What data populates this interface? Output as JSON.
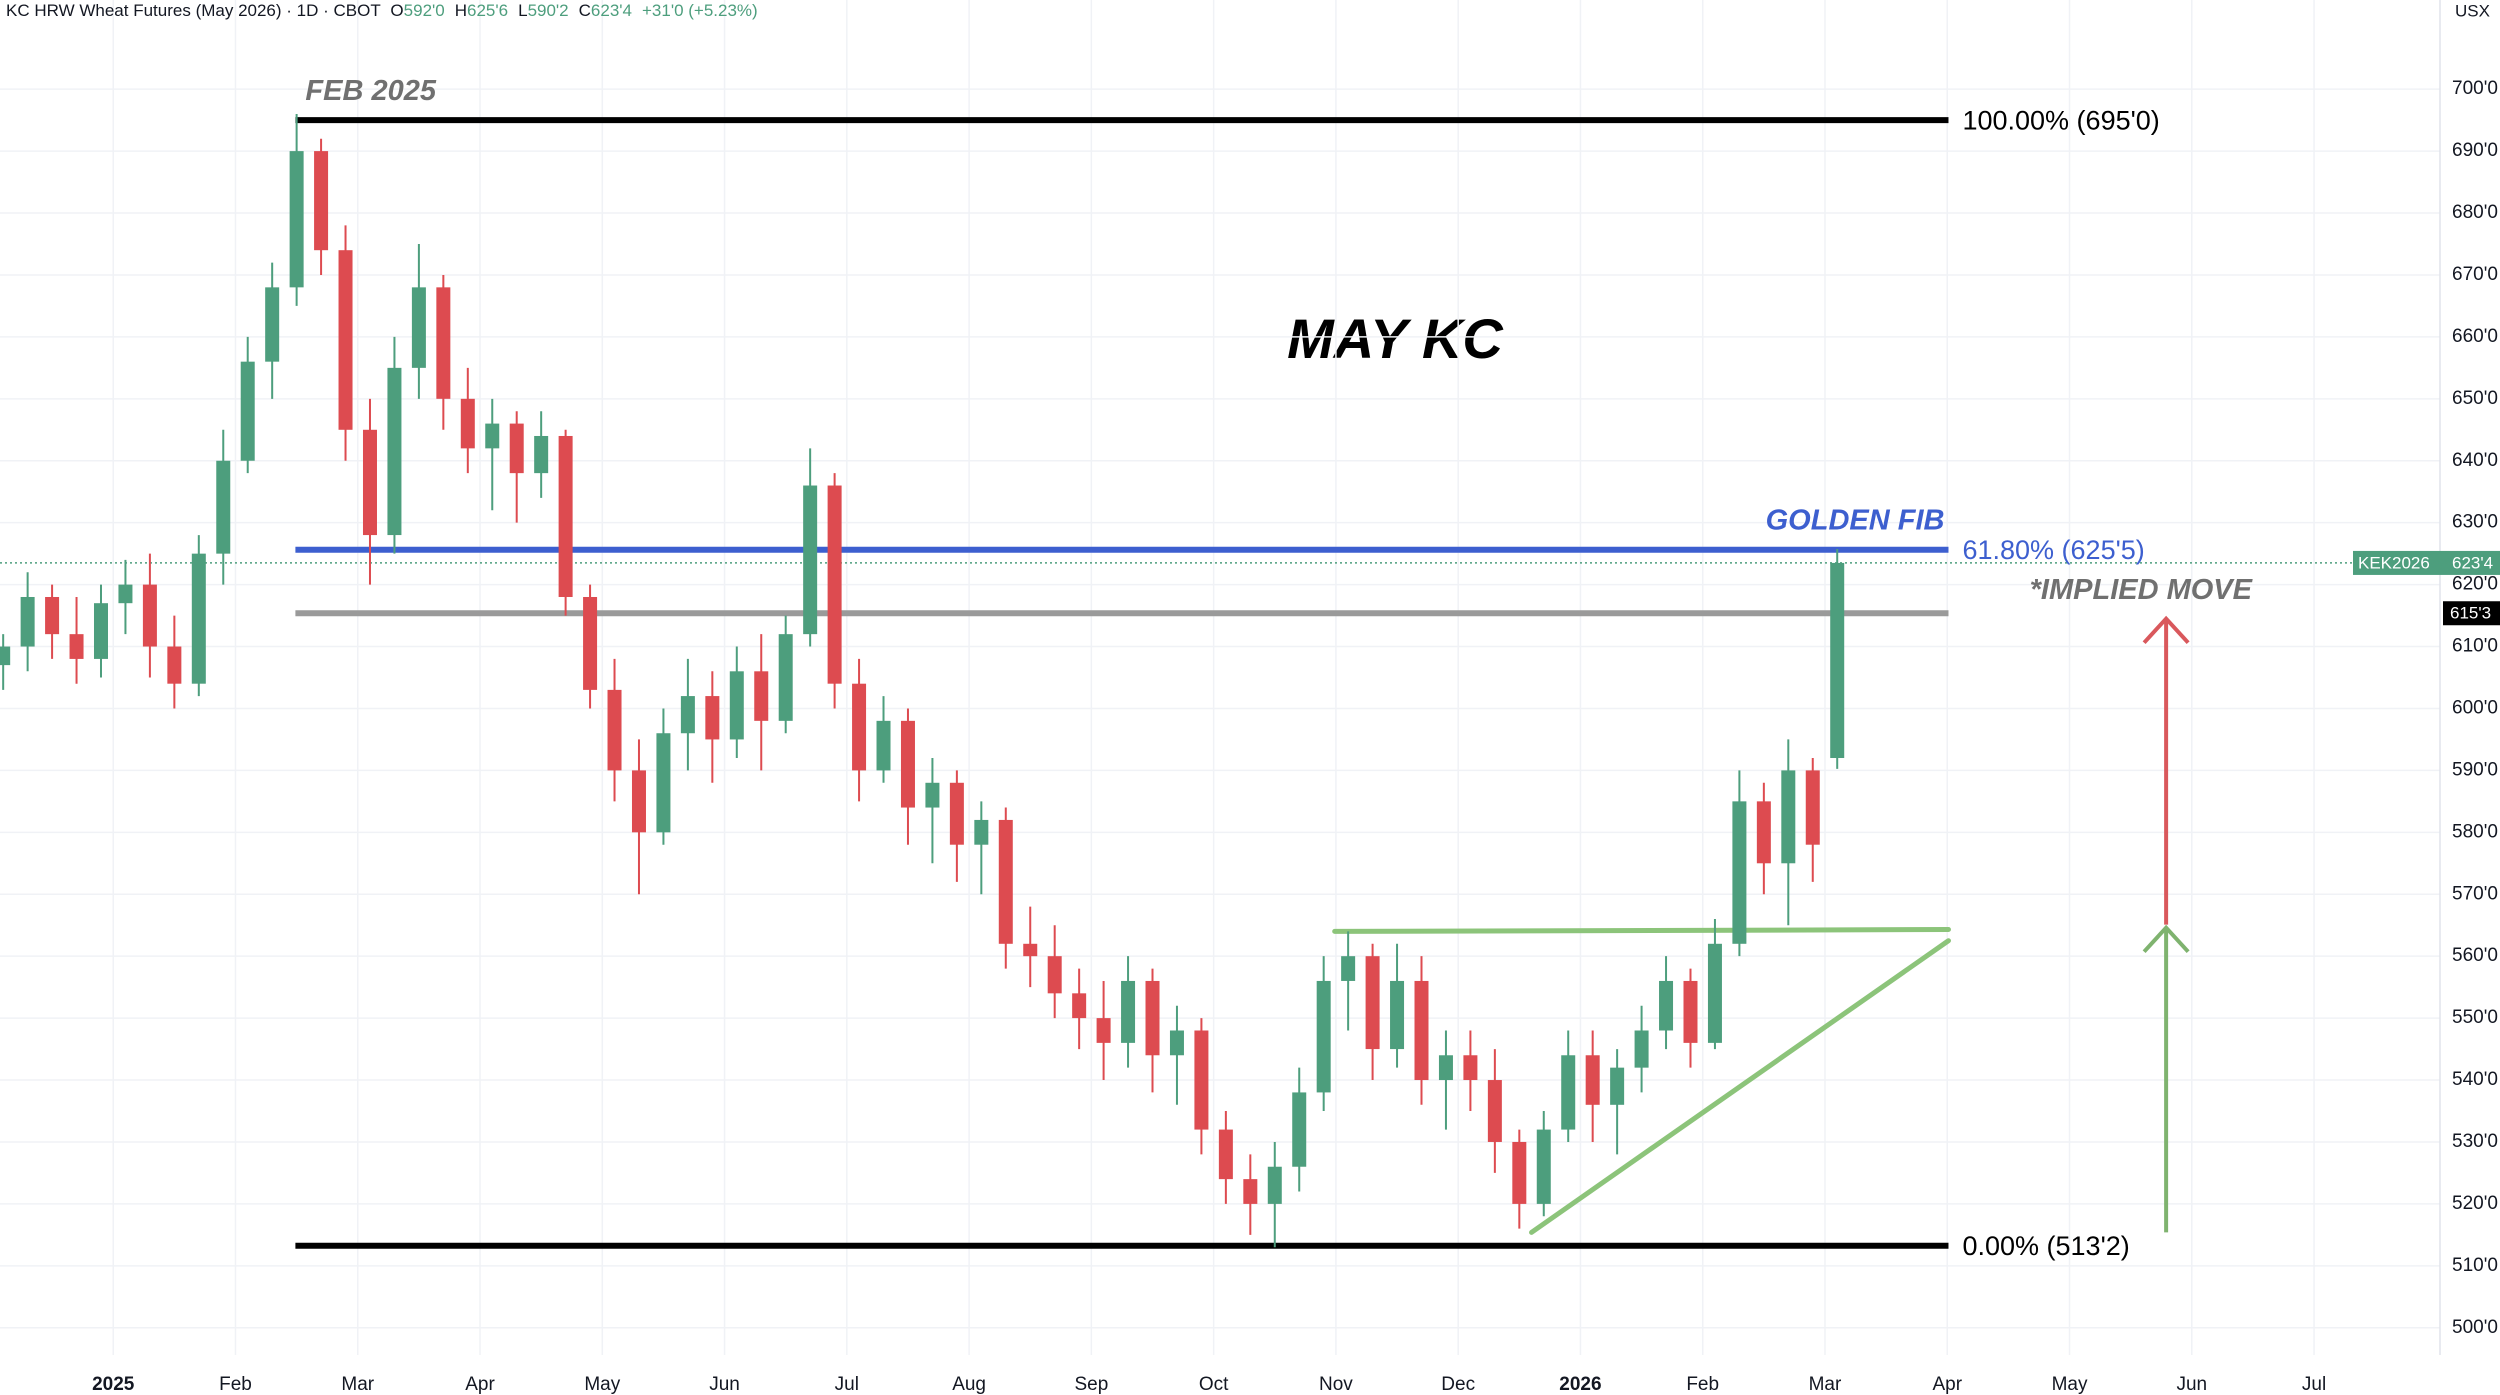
{
  "header": {
    "symbol": "KC HRW Wheat Futures (May 2026) · 1D · CBOT",
    "ohlc": [
      {
        "label": "O",
        "value": "592'0"
      },
      {
        "label": "H",
        "value": "625'6"
      },
      {
        "label": "L",
        "value": "590'2"
      },
      {
        "label": "C",
        "value": "623'4"
      }
    ],
    "change": "+31'0 (+5.23%)",
    "currency": "USX"
  },
  "chart_data": {
    "type": "candlestick",
    "title": "MAY KC",
    "up_color": "#4d9e7d",
    "down_color": "#dd4b50",
    "grid": true,
    "xlim": [
      -0.926,
      19.03
    ],
    "ylim": [
      495.6,
      714.4
    ],
    "xticks": [
      {
        "value": 0,
        "label": "2025"
      },
      {
        "value": 1,
        "label": "Feb"
      },
      {
        "value": 2,
        "label": "Mar"
      },
      {
        "value": 3,
        "label": "Apr"
      },
      {
        "value": 4,
        "label": "May"
      },
      {
        "value": 5,
        "label": "Jun"
      },
      {
        "value": 6,
        "label": "Jul"
      },
      {
        "value": 7,
        "label": "Aug"
      },
      {
        "value": 8,
        "label": "Sep"
      },
      {
        "value": 9,
        "label": "Oct"
      },
      {
        "value": 10,
        "label": "Nov"
      },
      {
        "value": 11,
        "label": "Dec"
      },
      {
        "value": 12,
        "label": "2026"
      },
      {
        "value": 13,
        "label": "Feb"
      },
      {
        "value": 14,
        "label": "Mar"
      },
      {
        "value": 15,
        "label": "Apr"
      },
      {
        "value": 16,
        "label": "May"
      },
      {
        "value": 17,
        "label": "Jun"
      },
      {
        "value": 18,
        "label": "Jul"
      }
    ],
    "yticks": [
      {
        "value": 500,
        "label": "500'0"
      },
      {
        "value": 510,
        "label": "510'0"
      },
      {
        "value": 520,
        "label": "520'0"
      },
      {
        "value": 530,
        "label": "530'0"
      },
      {
        "value": 540,
        "label": "540'0"
      },
      {
        "value": 550,
        "label": "550'0"
      },
      {
        "value": 560,
        "label": "560'0"
      },
      {
        "value": 570,
        "label": "570'0"
      },
      {
        "value": 580,
        "label": "580'0"
      },
      {
        "value": 590,
        "label": "590'0"
      },
      {
        "value": 600,
        "label": "600'0"
      },
      {
        "value": 610,
        "label": "610'0"
      },
      {
        "value": 620,
        "label": "620'0"
      },
      {
        "value": 630,
        "label": "630'0"
      },
      {
        "value": 640,
        "label": "640'0"
      },
      {
        "value": 650,
        "label": "650'0"
      },
      {
        "value": 660,
        "label": "660'0"
      },
      {
        "value": 670,
        "label": "670'0"
      },
      {
        "value": 680,
        "label": "680'0"
      },
      {
        "value": 690,
        "label": "690'0"
      },
      {
        "value": 700,
        "label": "700'0"
      }
    ],
    "candles": [
      {
        "x": -0.9,
        "open": 607,
        "high": 612,
        "low": 603,
        "close": 610
      },
      {
        "x": -0.7,
        "open": 610,
        "high": 622,
        "low": 606,
        "close": 618
      },
      {
        "x": -0.5,
        "open": 618,
        "high": 620,
        "low": 608,
        "close": 612
      },
      {
        "x": -0.3,
        "open": 612,
        "high": 618,
        "low": 604,
        "close": 608
      },
      {
        "x": -0.1,
        "open": 608,
        "high": 620,
        "low": 605,
        "close": 617
      },
      {
        "x": 0.1,
        "open": 617,
        "high": 624,
        "low": 612,
        "close": 620
      },
      {
        "x": 0.3,
        "open": 620,
        "high": 625,
        "low": 605,
        "close": 610
      },
      {
        "x": 0.5,
        "open": 610,
        "high": 615,
        "low": 600,
        "close": 604
      },
      {
        "x": 0.7,
        "open": 604,
        "high": 628,
        "low": 602,
        "close": 625
      },
      {
        "x": 0.9,
        "open": 625,
        "high": 645,
        "low": 620,
        "close": 640
      },
      {
        "x": 1.1,
        "open": 640,
        "high": 660,
        "low": 638,
        "close": 656
      },
      {
        "x": 1.3,
        "open": 656,
        "high": 672,
        "low": 650,
        "close": 668
      },
      {
        "x": 1.5,
        "open": 668,
        "high": 696,
        "low": 665,
        "close": 690
      },
      {
        "x": 1.7,
        "open": 690,
        "high": 692,
        "low": 670,
        "close": 674
      },
      {
        "x": 1.9,
        "open": 674,
        "high": 678,
        "low": 640,
        "close": 645
      },
      {
        "x": 2.1,
        "open": 645,
        "high": 650,
        "low": 620,
        "close": 628
      },
      {
        "x": 2.3,
        "open": 628,
        "high": 660,
        "low": 625,
        "close": 655
      },
      {
        "x": 2.5,
        "open": 655,
        "high": 675,
        "low": 650,
        "close": 668
      },
      {
        "x": 2.7,
        "open": 668,
        "high": 670,
        "low": 645,
        "close": 650
      },
      {
        "x": 2.9,
        "open": 650,
        "high": 655,
        "low": 638,
        "close": 642
      },
      {
        "x": 3.1,
        "open": 642,
        "high": 650,
        "low": 632,
        "close": 646
      },
      {
        "x": 3.3,
        "open": 646,
        "high": 648,
        "low": 630,
        "close": 638
      },
      {
        "x": 3.5,
        "open": 638,
        "high": 648,
        "low": 634,
        "close": 644
      },
      {
        "x": 3.7,
        "open": 644,
        "high": 645,
        "low": 615,
        "close": 618
      },
      {
        "x": 3.9,
        "open": 618,
        "high": 620,
        "low": 600,
        "close": 603
      },
      {
        "x": 4.1,
        "open": 603,
        "high": 608,
        "low": 585,
        "close": 590
      },
      {
        "x": 4.3,
        "open": 590,
        "high": 595,
        "low": 570,
        "close": 580
      },
      {
        "x": 4.5,
        "open": 580,
        "high": 600,
        "low": 578,
        "close": 596
      },
      {
        "x": 4.7,
        "open": 596,
        "high": 608,
        "low": 590,
        "close": 602
      },
      {
        "x": 4.9,
        "open": 602,
        "high": 606,
        "low": 588,
        "close": 595
      },
      {
        "x": 5.1,
        "open": 595,
        "high": 610,
        "low": 592,
        "close": 606
      },
      {
        "x": 5.3,
        "open": 606,
        "high": 612,
        "low": 590,
        "close": 598
      },
      {
        "x": 5.5,
        "open": 598,
        "high": 615,
        "low": 596,
        "close": 612
      },
      {
        "x": 5.7,
        "open": 612,
        "high": 642,
        "low": 610,
        "close": 636
      },
      {
        "x": 5.9,
        "open": 636,
        "high": 638,
        "low": 600,
        "close": 604
      },
      {
        "x": 6.1,
        "open": 604,
        "high": 608,
        "low": 585,
        "close": 590
      },
      {
        "x": 6.3,
        "open": 590,
        "high": 602,
        "low": 588,
        "close": 598
      },
      {
        "x": 6.5,
        "open": 598,
        "high": 600,
        "low": 578,
        "close": 584
      },
      {
        "x": 6.7,
        "open": 584,
        "high": 592,
        "low": 575,
        "close": 588
      },
      {
        "x": 6.9,
        "open": 588,
        "high": 590,
        "low": 572,
        "close": 578
      },
      {
        "x": 7.1,
        "open": 578,
        "high": 585,
        "low": 570,
        "close": 582
      },
      {
        "x": 7.3,
        "open": 582,
        "high": 584,
        "low": 558,
        "close": 562
      },
      {
        "x": 7.5,
        "open": 562,
        "high": 568,
        "low": 555,
        "close": 560
      },
      {
        "x": 7.7,
        "open": 560,
        "high": 565,
        "low": 550,
        "close": 554
      },
      {
        "x": 7.9,
        "open": 554,
        "high": 558,
        "low": 545,
        "close": 550
      },
      {
        "x": 8.1,
        "open": 550,
        "high": 556,
        "low": 540,
        "close": 546
      },
      {
        "x": 8.3,
        "open": 546,
        "high": 560,
        "low": 542,
        "close": 556
      },
      {
        "x": 8.5,
        "open": 556,
        "high": 558,
        "low": 538,
        "close": 544
      },
      {
        "x": 8.7,
        "open": 544,
        "high": 552,
        "low": 536,
        "close": 548
      },
      {
        "x": 8.9,
        "open": 548,
        "high": 550,
        "low": 528,
        "close": 532
      },
      {
        "x": 9.1,
        "open": 532,
        "high": 535,
        "low": 520,
        "close": 524
      },
      {
        "x": 9.3,
        "open": 524,
        "high": 528,
        "low": 515,
        "close": 520
      },
      {
        "x": 9.5,
        "open": 520,
        "high": 530,
        "low": 513,
        "close": 526
      },
      {
        "x": 9.7,
        "open": 526,
        "high": 542,
        "low": 522,
        "close": 538
      },
      {
        "x": 9.9,
        "open": 538,
        "high": 560,
        "low": 535,
        "close": 556
      },
      {
        "x": 10.1,
        "open": 556,
        "high": 564,
        "low": 548,
        "close": 560
      },
      {
        "x": 10.3,
        "open": 560,
        "high": 562,
        "low": 540,
        "close": 545
      },
      {
        "x": 10.5,
        "open": 545,
        "high": 562,
        "low": 542,
        "close": 556
      },
      {
        "x": 10.7,
        "open": 556,
        "high": 560,
        "low": 536,
        "close": 540
      },
      {
        "x": 10.9,
        "open": 540,
        "high": 548,
        "low": 532,
        "close": 544
      },
      {
        "x": 11.1,
        "open": 544,
        "high": 548,
        "low": 535,
        "close": 540
      },
      {
        "x": 11.3,
        "open": 540,
        "high": 545,
        "low": 525,
        "close": 530
      },
      {
        "x": 11.5,
        "open": 530,
        "high": 532,
        "low": 516,
        "close": 520
      },
      {
        "x": 11.7,
        "open": 520,
        "high": 535,
        "low": 518,
        "close": 532
      },
      {
        "x": 11.9,
        "open": 532,
        "high": 548,
        "low": 530,
        "close": 544
      },
      {
        "x": 12.1,
        "open": 544,
        "high": 548,
        "low": 530,
        "close": 536
      },
      {
        "x": 12.3,
        "open": 536,
        "high": 545,
        "low": 528,
        "close": 542
      },
      {
        "x": 12.5,
        "open": 542,
        "high": 552,
        "low": 538,
        "close": 548
      },
      {
        "x": 12.7,
        "open": 548,
        "high": 560,
        "low": 545,
        "close": 556
      },
      {
        "x": 12.9,
        "open": 556,
        "high": 558,
        "low": 542,
        "close": 546
      },
      {
        "x": 13.1,
        "open": 546,
        "high": 566,
        "low": 545,
        "close": 562
      },
      {
        "x": 13.3,
        "open": 562,
        "high": 590,
        "low": 560,
        "close": 585
      },
      {
        "x": 13.5,
        "open": 585,
        "high": 588,
        "low": 570,
        "close": 575
      },
      {
        "x": 13.7,
        "open": 575,
        "high": 595,
        "low": 565,
        "close": 590
      },
      {
        "x": 13.9,
        "open": 590,
        "high": 592,
        "low": 572,
        "close": 578
      },
      {
        "x": 14.1,
        "open": 592,
        "high": 625.75,
        "low": 590.25,
        "close": 623.5
      }
    ],
    "levels": [
      {
        "name": "100.00% (695'0)",
        "value": 695,
        "x": [
          1.49,
          15.01
        ],
        "color": "#000000",
        "note": "FEB 2025",
        "note_color": "#707070"
      },
      {
        "name": "61.80% (625'5)",
        "value": 625.625,
        "x": [
          1.49,
          15.01
        ],
        "color": "#3d5fcf",
        "note": "GOLDEN FIB",
        "note_color": "#3d5fcf"
      },
      {
        "name": "0.00% (513'2)",
        "value": 513.25,
        "x": [
          1.49,
          15.01
        ],
        "color": "#000000"
      }
    ],
    "implied": {
      "note": "*IMPLIED MOVE",
      "value": 615.375,
      "value_label": "615'3",
      "x": [
        1.49,
        15.01
      ],
      "color": "#9a9a9a"
    },
    "last_price": {
      "label": "KEK2026",
      "value": 623.5,
      "value_label": "623'4",
      "color": "#4d9e7d"
    },
    "trendlines": [
      {
        "x": [
          9.99,
          15.01
        ],
        "y": [
          564,
          564.3
        ],
        "color": "#8cc47a"
      },
      {
        "x": [
          11.6,
          15.01
        ],
        "y": [
          515.4,
          562.5
        ],
        "color": "#8cc47a"
      }
    ],
    "arrows": [
      {
        "x": 16.79,
        "from": 565.1,
        "to": 614.5,
        "color": "#d9585c"
      },
      {
        "x": 16.79,
        "from": 515.4,
        "to": 564.6,
        "color": "#7fb36f"
      }
    ]
  }
}
